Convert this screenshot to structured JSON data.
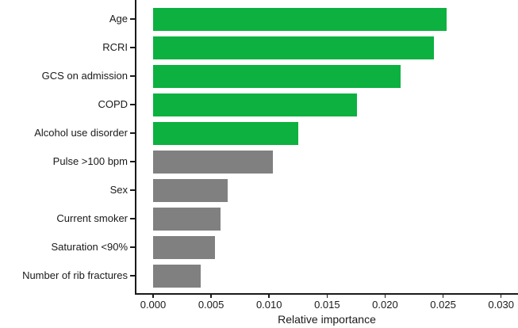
{
  "chart_data": {
    "type": "bar",
    "orientation": "horizontal",
    "title": "",
    "xlabel": "Relative importance",
    "ylabel": "",
    "categories": [
      "Age",
      "RCRI",
      "GCS on admission",
      "COPD",
      "Alcohol use disorder",
      "Pulse >100 bpm",
      "Sex",
      "Current smoker",
      "Saturation <90%",
      "Number of rib fractures"
    ],
    "values": [
      0.0253,
      0.0242,
      0.0213,
      0.0176,
      0.0125,
      0.0103,
      0.0064,
      0.0058,
      0.0053,
      0.0041
    ],
    "bar_color_keys": [
      "green",
      "green",
      "green",
      "green",
      "green",
      "gray",
      "gray",
      "gray",
      "gray",
      "gray"
    ],
    "colors": {
      "green": "#0CB140",
      "gray": "#808080"
    },
    "axis_color": "#1a1a1a",
    "text_color": "#1a1a1a",
    "xlim": [
      0,
      0.03
    ],
    "x_ticks": [
      0,
      0.005,
      0.01,
      0.015,
      0.02,
      0.025,
      0.03
    ],
    "x_tick_labels": [
      "0.000",
      "0.005",
      "0.010",
      "0.015",
      "0.020",
      "0.025",
      "0.030"
    ],
    "grid": "off",
    "legend": "none"
  }
}
